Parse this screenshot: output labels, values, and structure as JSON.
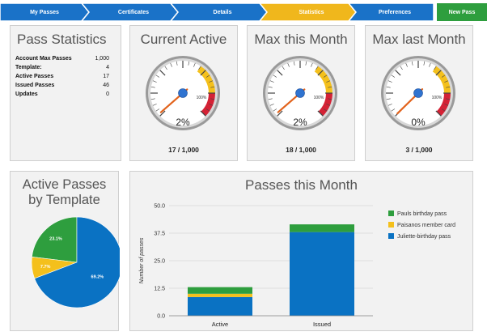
{
  "nav": {
    "steps": [
      {
        "label": "My Passes",
        "color": "#1a72c8"
      },
      {
        "label": "Certificates",
        "color": "#1a72c8"
      },
      {
        "label": "Details",
        "color": "#1a72c8"
      },
      {
        "label": "Statistics",
        "color": "#f0b71c"
      },
      {
        "label": "Preferences",
        "color": "#1a72c8"
      }
    ],
    "new_pass_label": "New Pass",
    "new_pass_color": "#2e9e3e"
  },
  "stats": {
    "title": "Pass Statistics",
    "rows": [
      {
        "label": "Account Max Passes",
        "value": "1,000"
      },
      {
        "label": "Template:",
        "value": "4"
      },
      {
        "label": "Active Passes",
        "value": "17"
      },
      {
        "label": "Issued Passes",
        "value": "46"
      },
      {
        "label": "Updates",
        "value": "0"
      }
    ]
  },
  "gauges": [
    {
      "title": "Current Active",
      "percent_label": "2%",
      "percent": 1.7,
      "mark_label": "100%",
      "caption": "17 / 1,000"
    },
    {
      "title": "Max this Month",
      "percent_label": "2%",
      "percent": 1.8,
      "mark_label": "100%",
      "caption": "18 / 1,000"
    },
    {
      "title": "Max last Month",
      "percent_label": "0%",
      "percent": 0.3,
      "mark_label": "100%",
      "caption": "3 / 1,000"
    }
  ],
  "pie": {
    "title_line1": "Active Passes",
    "title_line2": "by Template"
  },
  "bar": {
    "title": "Passes this Month"
  },
  "colors": {
    "green": "#2e9e3e",
    "yellow": "#f4c01c",
    "blue": "#0a72c3",
    "red": "#d42235",
    "needle": "#e2631c",
    "hub": "#2f73d0"
  },
  "chart_data": [
    {
      "type": "pie",
      "slices": [
        {
          "name": "Pauls birthday pass",
          "value": 23.1,
          "label": "23.1%"
        },
        {
          "name": "Paisanos member card",
          "value": 7.7,
          "label": "7.7%"
        },
        {
          "name": "Juliette-birthday pass",
          "value": 69.2,
          "label": "69.2%"
        }
      ]
    },
    {
      "type": "bar",
      "stacked": true,
      "categories": [
        "Active",
        "Issued"
      ],
      "series": [
        {
          "name": "Juliette-birthday pass",
          "values": [
            8.5,
            38
          ]
        },
        {
          "name": "Paisanos member card",
          "values": [
            1.5,
            0
          ]
        },
        {
          "name": "Pauls birthday pass",
          "values": [
            3,
            3.5
          ]
        }
      ],
      "ylabel": "Number of passes",
      "ylim": [
        0,
        50
      ],
      "yticks": [
        "0.0",
        "12.5",
        "25.0",
        "37.5",
        "50.0"
      ],
      "legend": [
        {
          "name": "Pauls birthday pass",
          "color": "#2e9e3e"
        },
        {
          "name": "Paisanos member card",
          "color": "#f4c01c"
        },
        {
          "name": "Juliette-birthday pass",
          "color": "#0a72c3"
        }
      ],
      "legend_position": "right",
      "grid": true
    }
  ]
}
